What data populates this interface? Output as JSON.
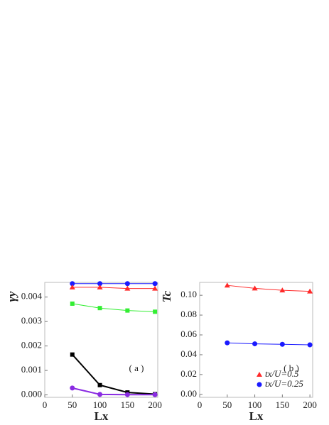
{
  "chart_data": [
    {
      "type": "line",
      "annotation": "( a )",
      "xlabel": "Lx",
      "ylabel": "γy",
      "x": [
        50,
        100,
        150,
        200
      ],
      "xlim": [
        0,
        205
      ],
      "xticks": [
        0,
        50,
        100,
        150,
        200
      ],
      "ylim": [
        -0.0001,
        0.0046
      ],
      "yticks": [
        {
          "value": 0,
          "label": "0.000"
        },
        {
          "value": 0.001,
          "label": "0.001"
        },
        {
          "value": 0.002,
          "label": "0.002"
        },
        {
          "value": 0.003,
          "label": "0.003"
        },
        {
          "value": 0.004,
          "label": "0.004"
        }
      ],
      "series": [
        {
          "color": "#1a1aff",
          "marker": "circle",
          "values": [
            0.00455,
            0.00455,
            0.00455,
            0.00455
          ]
        },
        {
          "color": "#ff2a2a",
          "marker": "triangle",
          "values": [
            0.0044,
            0.0044,
            0.00435,
            0.00435
          ]
        },
        {
          "color": "#33ee33",
          "marker": "square",
          "values": [
            0.00373,
            0.00355,
            0.00345,
            0.0034
          ]
        },
        {
          "color": "#000000",
          "marker": "square",
          "values": [
            0.00165,
            0.0004,
            0.0001,
            3e-05
          ]
        },
        {
          "color": "#8a2be2",
          "marker": "circle",
          "values": [
            0.00028,
            2e-05,
            1e-05,
            1e-05
          ]
        }
      ]
    },
    {
      "type": "line",
      "annotation": "( b )",
      "xlabel": "Lx",
      "ylabel": "Tc",
      "x": [
        50,
        100,
        150,
        200
      ],
      "xlim": [
        0,
        205
      ],
      "xticks": [
        0,
        50,
        100,
        150,
        200
      ],
      "ylim": [
        -0.003,
        0.113
      ],
      "yticks": [
        {
          "value": 0,
          "label": "0.00"
        },
        {
          "value": 0.02,
          "label": "0.02"
        },
        {
          "value": 0.04,
          "label": "0.04"
        },
        {
          "value": 0.06,
          "label": "0.06"
        },
        {
          "value": 0.08,
          "label": "0.08"
        },
        {
          "value": 0.1,
          "label": "0.10"
        }
      ],
      "legend": "lower right",
      "series": [
        {
          "name": "tx/U=0.5",
          "color": "#ff2a2a",
          "marker": "triangle",
          "values": [
            0.11,
            0.107,
            0.105,
            0.104
          ]
        },
        {
          "name": "tx/U=0.25",
          "color": "#1a1aff",
          "marker": "circle",
          "values": [
            0.052,
            0.051,
            0.0505,
            0.05
          ]
        }
      ]
    }
  ]
}
